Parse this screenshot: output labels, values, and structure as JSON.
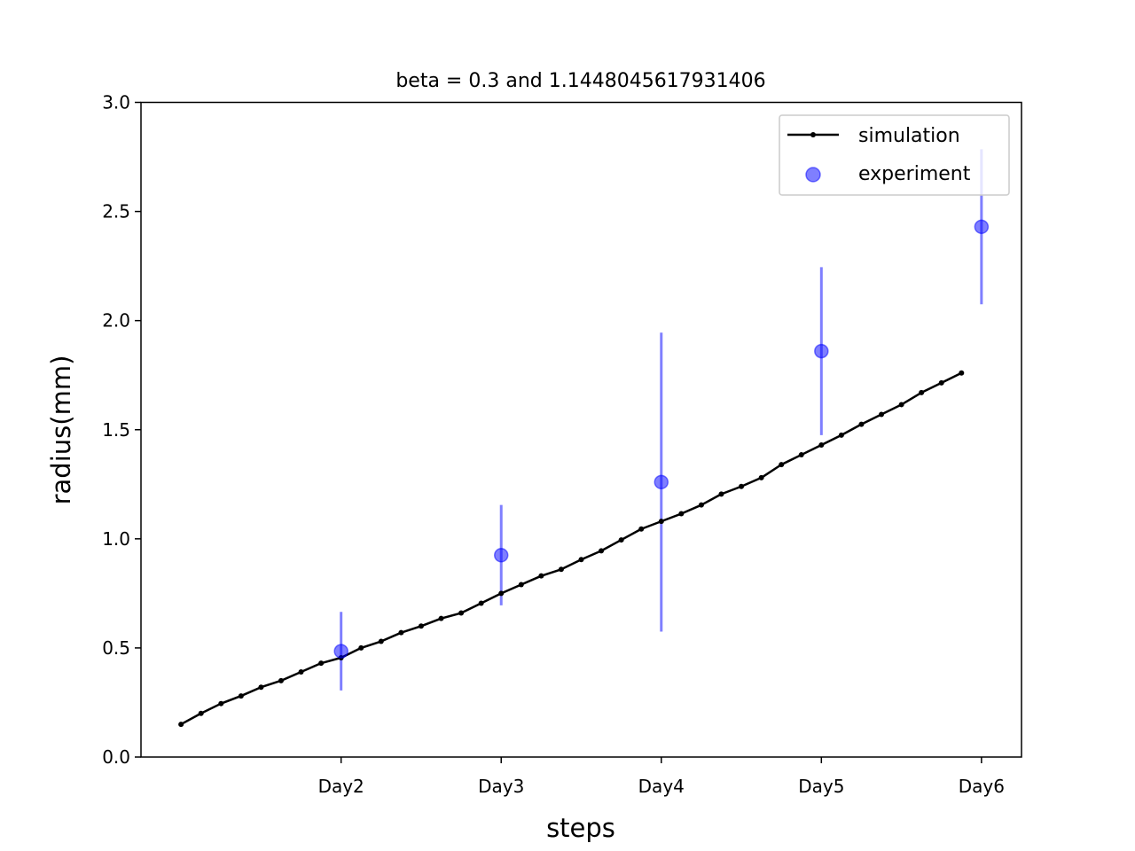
{
  "chart_data": {
    "type": "line",
    "title": "beta = 0.3 and 1.1448045617931406",
    "xlabel": "steps",
    "ylabel": "radius(mm)",
    "xticks": [
      "Day2",
      "Day3",
      "Day4",
      "Day5",
      "Day6"
    ],
    "xlim": [
      0.75,
      6.25
    ],
    "ylim": [
      0,
      3
    ],
    "yticks": [
      "0.0",
      "0.5",
      "1.0",
      "1.5",
      "2.0",
      "2.5",
      "3.0"
    ],
    "grid": false,
    "legend_position": "top-right",
    "series": [
      {
        "name": "simulation",
        "kind": "line",
        "color": "#000000",
        "x": [
          1.0,
          1.125,
          1.25,
          1.375,
          1.5,
          1.625,
          1.75,
          1.875,
          2.0,
          2.125,
          2.25,
          2.375,
          2.5,
          2.625,
          2.75,
          2.875,
          3.0,
          3.125,
          3.25,
          3.375,
          3.5,
          3.625,
          3.75,
          3.875,
          4.0,
          4.125,
          4.25,
          4.375,
          4.5,
          4.625,
          4.75,
          4.875,
          5.0,
          5.125,
          5.25,
          5.375,
          5.5,
          5.625,
          5.75,
          5.875
        ],
        "y": [
          0.15,
          0.2,
          0.245,
          0.28,
          0.32,
          0.35,
          0.39,
          0.43,
          0.455,
          0.5,
          0.53,
          0.57,
          0.6,
          0.635,
          0.66,
          0.705,
          0.75,
          0.79,
          0.83,
          0.86,
          0.905,
          0.945,
          0.995,
          1.045,
          1.08,
          1.115,
          1.155,
          1.205,
          1.24,
          1.28,
          1.34,
          1.385,
          1.43,
          1.475,
          1.525,
          1.57,
          1.615,
          1.67,
          1.715,
          1.76
        ]
      },
      {
        "name": "experiment",
        "kind": "scatter",
        "color": "#0000ff",
        "x": [
          2,
          3,
          4,
          5,
          6
        ],
        "y": [
          0.485,
          0.925,
          1.26,
          1.86,
          2.43
        ],
        "yerr_low": [
          0.305,
          0.695,
          0.575,
          1.475,
          2.075
        ],
        "yerr_high": [
          0.665,
          1.155,
          1.945,
          2.245,
          2.785
        ]
      }
    ]
  }
}
